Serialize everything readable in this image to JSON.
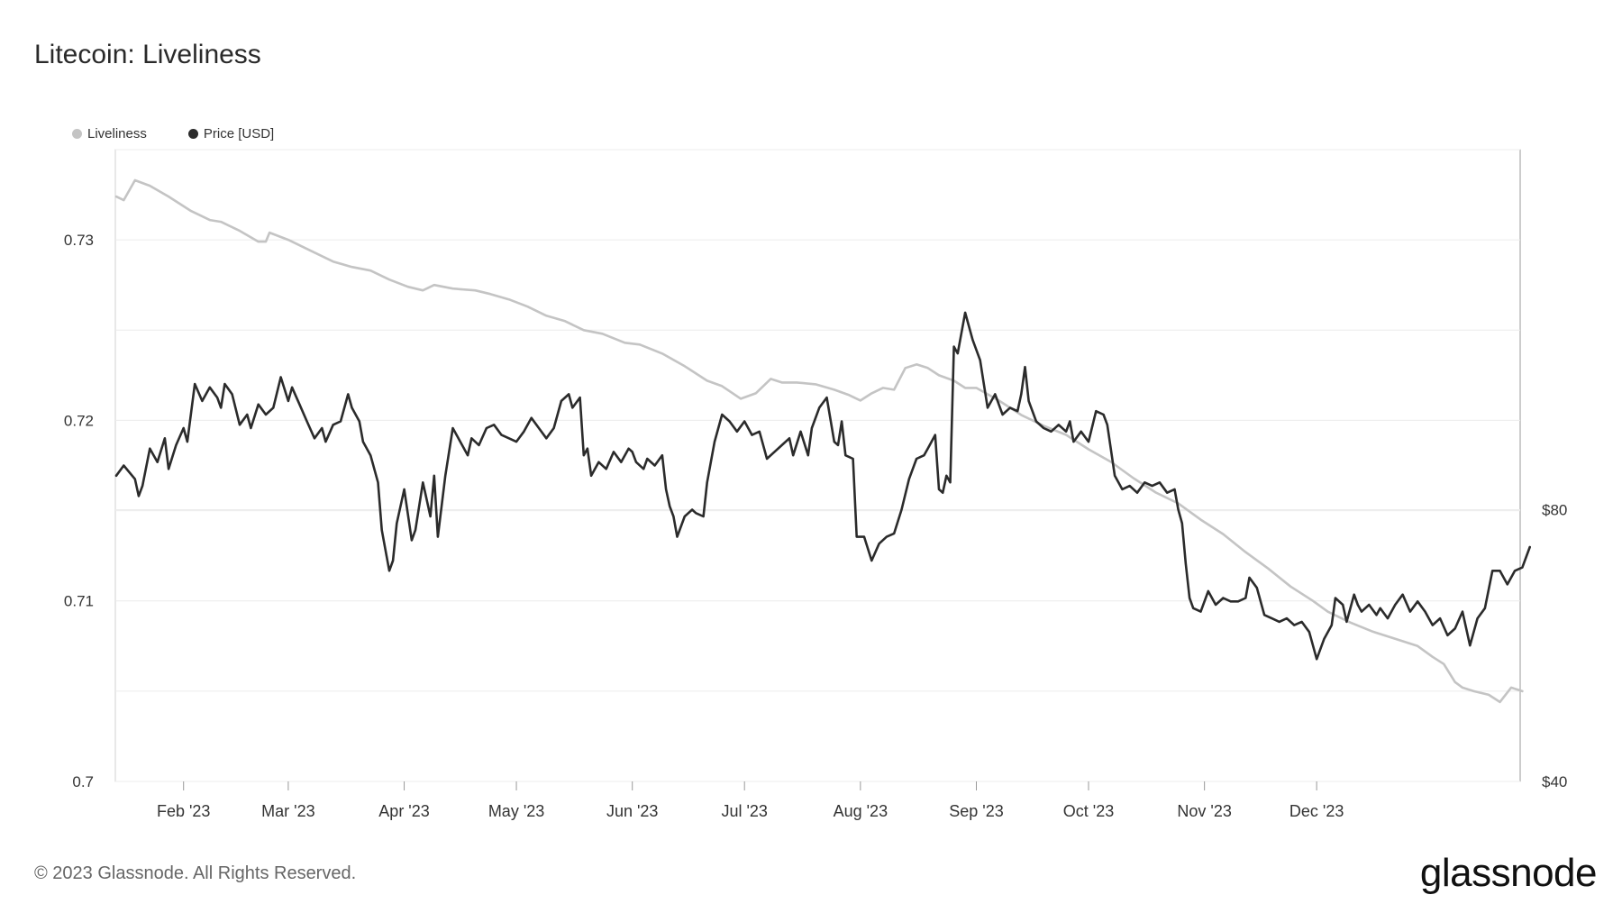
{
  "title": "Litecoin: Liveliness",
  "footer": "© 2023 Glassnode. All Rights Reserved.",
  "brand": "glassnode",
  "colors": {
    "liveliness": "#c4c4c4",
    "price": "#2b2b2b",
    "grid": "#ececec",
    "axis": "#d0d0d0"
  },
  "chart_data": {
    "type": "line",
    "title": "Litecoin: Liveliness",
    "legend_position": "top-left",
    "grid": true,
    "x_ticks": [
      "Feb '23",
      "Mar '23",
      "Apr '23",
      "May '23",
      "Jun '23",
      "Jul '23",
      "Aug '23",
      "Sep '23",
      "Oct '23",
      "Nov '23",
      "Dec '23"
    ],
    "y_left": {
      "ticks": [
        "0.7",
        "0.71",
        "0.72",
        "0.73"
      ],
      "lim": [
        0.7,
        0.735
      ]
    },
    "y_right": {
      "ticks": [
        "$40",
        "$80"
      ],
      "lim": [
        40,
        133
      ]
    },
    "series": [
      {
        "name": "Liveliness",
        "axis": "left",
        "points": [
          [
            0,
            0.7324
          ],
          [
            2,
            0.7322
          ],
          [
            5,
            0.7333
          ],
          [
            9,
            0.733
          ],
          [
            14,
            0.7324
          ],
          [
            20,
            0.7316
          ],
          [
            25,
            0.7311
          ],
          [
            28,
            0.731
          ],
          [
            33,
            0.7305
          ],
          [
            38,
            0.7299
          ],
          [
            40,
            0.7299
          ],
          [
            41,
            0.7304
          ],
          [
            46,
            0.73
          ],
          [
            52,
            0.7294
          ],
          [
            58,
            0.7288
          ],
          [
            63,
            0.7285
          ],
          [
            68,
            0.7283
          ],
          [
            73,
            0.7278
          ],
          [
            78,
            0.7274
          ],
          [
            82,
            0.7272
          ],
          [
            85,
            0.7275
          ],
          [
            90,
            0.7273
          ],
          [
            96,
            0.7272
          ],
          [
            100,
            0.727
          ],
          [
            105,
            0.7267
          ],
          [
            110,
            0.7263
          ],
          [
            115,
            0.7258
          ],
          [
            120,
            0.7255
          ],
          [
            125,
            0.725
          ],
          [
            130,
            0.7248
          ],
          [
            136,
            0.7243
          ],
          [
            140,
            0.7242
          ],
          [
            146,
            0.7237
          ],
          [
            152,
            0.723
          ],
          [
            158,
            0.7222
          ],
          [
            162,
            0.7219
          ],
          [
            167,
            0.7212
          ],
          [
            171,
            0.7215
          ],
          [
            175,
            0.7223
          ],
          [
            178,
            0.7221
          ],
          [
            182,
            0.7221
          ],
          [
            187,
            0.722
          ],
          [
            192,
            0.7217
          ],
          [
            196,
            0.7214
          ],
          [
            199,
            0.7211
          ],
          [
            202,
            0.7215
          ],
          [
            205,
            0.7218
          ],
          [
            208,
            0.7217
          ],
          [
            211,
            0.7229
          ],
          [
            214,
            0.7231
          ],
          [
            217,
            0.7229
          ],
          [
            220,
            0.7225
          ],
          [
            224,
            0.7222
          ],
          [
            227,
            0.7218
          ],
          [
            230,
            0.7218
          ],
          [
            236,
            0.7211
          ],
          [
            242,
            0.7203
          ],
          [
            248,
            0.7197
          ],
          [
            254,
            0.7192
          ],
          [
            260,
            0.7184
          ],
          [
            266,
            0.7177
          ],
          [
            272,
            0.7168
          ],
          [
            278,
            0.716
          ],
          [
            284,
            0.7154
          ],
          [
            290,
            0.7145
          ],
          [
            296,
            0.7137
          ],
          [
            302,
            0.7127
          ],
          [
            308,
            0.7118
          ],
          [
            314,
            0.7108
          ],
          [
            320,
            0.71
          ],
          [
            324,
            0.7094
          ],
          [
            330,
            0.7088
          ],
          [
            336,
            0.7083
          ],
          [
            342,
            0.7079
          ],
          [
            348,
            0.7075
          ],
          [
            352,
            0.7069
          ],
          [
            355,
            0.7065
          ],
          [
            358,
            0.7055
          ],
          [
            360,
            0.7052
          ],
          [
            363,
            0.705
          ],
          [
            367,
            0.7048
          ],
          [
            370,
            0.7044
          ],
          [
            373,
            0.7052
          ],
          [
            376,
            0.705
          ]
        ]
      },
      {
        "name": "Price [USD]",
        "axis": "right",
        "points": [
          [
            0,
            85.0
          ],
          [
            2,
            86.5
          ],
          [
            5,
            84.5
          ],
          [
            6,
            82.0
          ],
          [
            7,
            83.5
          ],
          [
            9,
            89.0
          ],
          [
            11,
            87.0
          ],
          [
            13,
            90.5
          ],
          [
            14,
            86.0
          ],
          [
            16,
            89.5
          ],
          [
            18,
            92.0
          ],
          [
            19,
            90.0
          ],
          [
            21,
            98.5
          ],
          [
            23,
            96.0
          ],
          [
            25,
            98.0
          ],
          [
            27,
            96.5
          ],
          [
            28,
            95.0
          ],
          [
            29,
            98.5
          ],
          [
            31,
            97.0
          ],
          [
            33,
            92.5
          ],
          [
            35,
            94.0
          ],
          [
            36,
            92.0
          ],
          [
            38,
            95.5
          ],
          [
            40,
            94.0
          ],
          [
            42,
            95.0
          ],
          [
            44,
            99.5
          ],
          [
            46,
            96.0
          ],
          [
            47,
            98.0
          ],
          [
            49,
            95.5
          ],
          [
            51,
            93.0
          ],
          [
            53,
            90.5
          ],
          [
            55,
            92.0
          ],
          [
            56,
            90.0
          ],
          [
            58,
            92.5
          ],
          [
            60,
            93.0
          ],
          [
            62,
            97.0
          ],
          [
            63,
            95.0
          ],
          [
            65,
            93.0
          ],
          [
            66,
            90.0
          ],
          [
            68,
            88.0
          ],
          [
            70,
            84.0
          ],
          [
            71,
            77.0
          ],
          [
            73,
            71.0
          ],
          [
            74,
            72.5
          ],
          [
            75,
            78.0
          ],
          [
            77,
            83.0
          ],
          [
            79,
            75.5
          ],
          [
            80,
            77.0
          ],
          [
            82,
            84.0
          ],
          [
            83,
            81.5
          ],
          [
            84,
            79.0
          ],
          [
            85,
            85.0
          ],
          [
            86,
            76.0
          ],
          [
            88,
            85.0
          ],
          [
            90,
            92.0
          ],
          [
            92,
            90.0
          ],
          [
            94,
            88.0
          ],
          [
            95,
            90.5
          ],
          [
            97,
            89.5
          ],
          [
            99,
            92.0
          ],
          [
            101,
            92.5
          ],
          [
            103,
            91.0
          ],
          [
            105,
            90.5
          ],
          [
            107,
            90.0
          ],
          [
            109,
            91.5
          ],
          [
            111,
            93.5
          ],
          [
            113,
            92.0
          ],
          [
            115,
            90.5
          ],
          [
            117,
            92.0
          ],
          [
            119,
            96.0
          ],
          [
            121,
            97.0
          ],
          [
            122,
            95.0
          ],
          [
            124,
            96.5
          ],
          [
            125,
            88.0
          ],
          [
            126,
            89.0
          ],
          [
            127,
            85.0
          ],
          [
            129,
            87.0
          ],
          [
            131,
            86.0
          ],
          [
            133,
            88.5
          ],
          [
            135,
            87.0
          ],
          [
            137,
            89.0
          ],
          [
            138,
            88.5
          ],
          [
            139,
            87.0
          ],
          [
            141,
            86.0
          ],
          [
            142,
            87.5
          ],
          [
            144,
            86.5
          ],
          [
            146,
            88.0
          ],
          [
            147,
            83.0
          ],
          [
            148,
            80.5
          ],
          [
            149,
            79.0
          ],
          [
            150,
            76.0
          ],
          [
            152,
            79.0
          ],
          [
            154,
            80.0
          ],
          [
            155,
            79.5
          ],
          [
            157,
            79.0
          ],
          [
            158,
            84.0
          ],
          [
            160,
            90.0
          ],
          [
            162,
            94.0
          ],
          [
            164,
            93.0
          ],
          [
            166,
            91.5
          ],
          [
            168,
            93.0
          ],
          [
            170,
            91.0
          ],
          [
            172,
            91.5
          ],
          [
            174,
            87.5
          ],
          [
            176,
            88.5
          ],
          [
            178,
            89.5
          ],
          [
            180,
            90.5
          ],
          [
            181,
            88.0
          ],
          [
            183,
            91.5
          ],
          [
            185,
            88.0
          ],
          [
            186,
            92.0
          ],
          [
            188,
            95.0
          ],
          [
            190,
            96.5
          ],
          [
            192,
            90.0
          ],
          [
            193,
            89.5
          ],
          [
            194,
            93.0
          ],
          [
            195,
            88.0
          ],
          [
            197,
            87.5
          ],
          [
            198,
            76.0
          ],
          [
            200,
            76.0
          ],
          [
            202,
            72.5
          ],
          [
            204,
            75.0
          ],
          [
            206,
            76.0
          ],
          [
            208,
            76.5
          ],
          [
            210,
            80.0
          ],
          [
            212,
            84.5
          ],
          [
            214,
            87.5
          ],
          [
            216,
            88.0
          ],
          [
            217,
            89.0
          ],
          [
            219,
            91.0
          ],
          [
            220,
            83.0
          ],
          [
            221,
            82.5
          ],
          [
            222,
            85.0
          ],
          [
            223,
            84.0
          ],
          [
            224,
            104.0
          ],
          [
            225,
            103.0
          ],
          [
            227,
            109.0
          ],
          [
            229,
            105.0
          ],
          [
            231,
            102.0
          ],
          [
            232,
            98.5
          ],
          [
            233,
            95.0
          ],
          [
            235,
            97.0
          ],
          [
            237,
            94.0
          ],
          [
            239,
            95.0
          ],
          [
            241,
            94.5
          ],
          [
            242,
            97.0
          ],
          [
            243,
            101.0
          ],
          [
            244,
            96.0
          ],
          [
            246,
            93.0
          ],
          [
            248,
            92.0
          ],
          [
            250,
            91.5
          ],
          [
            252,
            92.5
          ],
          [
            254,
            91.5
          ],
          [
            255,
            93.0
          ],
          [
            256,
            90.0
          ],
          [
            258,
            91.5
          ],
          [
            260,
            90.0
          ],
          [
            262,
            94.5
          ],
          [
            264,
            94.0
          ],
          [
            265,
            92.5
          ],
          [
            267,
            85.0
          ],
          [
            269,
            83.0
          ],
          [
            271,
            83.5
          ],
          [
            273,
            82.5
          ],
          [
            275,
            84.0
          ],
          [
            277,
            83.5
          ],
          [
            279,
            84.0
          ],
          [
            281,
            82.5
          ],
          [
            283,
            83.0
          ],
          [
            284,
            80.0
          ],
          [
            285,
            78.0
          ],
          [
            286,
            72.0
          ],
          [
            287,
            67.0
          ],
          [
            288,
            65.5
          ],
          [
            290,
            65.0
          ],
          [
            292,
            68.0
          ],
          [
            294,
            66.0
          ],
          [
            296,
            67.0
          ],
          [
            298,
            66.5
          ],
          [
            300,
            66.5
          ],
          [
            302,
            67.0
          ],
          [
            303,
            70.0
          ],
          [
            305,
            68.5
          ],
          [
            307,
            64.5
          ],
          [
            309,
            64.0
          ],
          [
            311,
            63.5
          ],
          [
            313,
            64.0
          ],
          [
            315,
            63.0
          ],
          [
            317,
            63.5
          ],
          [
            319,
            62.0
          ],
          [
            321,
            58.0
          ],
          [
            323,
            61.0
          ],
          [
            325,
            63.0
          ],
          [
            326,
            67.0
          ],
          [
            328,
            66.0
          ],
          [
            329,
            63.5
          ],
          [
            331,
            67.5
          ],
          [
            332,
            66.0
          ],
          [
            333,
            65.0
          ],
          [
            335,
            66.0
          ],
          [
            337,
            64.5
          ],
          [
            338,
            65.5
          ],
          [
            340,
            64.0
          ],
          [
            342,
            66.0
          ],
          [
            344,
            67.5
          ],
          [
            346,
            65.0
          ],
          [
            348,
            66.5
          ],
          [
            350,
            65.0
          ],
          [
            352,
            63.0
          ],
          [
            354,
            64.0
          ],
          [
            356,
            61.5
          ],
          [
            358,
            62.5
          ],
          [
            360,
            65.0
          ],
          [
            362,
            60.0
          ],
          [
            364,
            64.0
          ],
          [
            366,
            65.5
          ],
          [
            368,
            71.0
          ],
          [
            370,
            71.0
          ],
          [
            372,
            69.0
          ],
          [
            374,
            71.0
          ],
          [
            376,
            71.5
          ],
          [
            378,
            74.5
          ]
        ]
      }
    ]
  }
}
